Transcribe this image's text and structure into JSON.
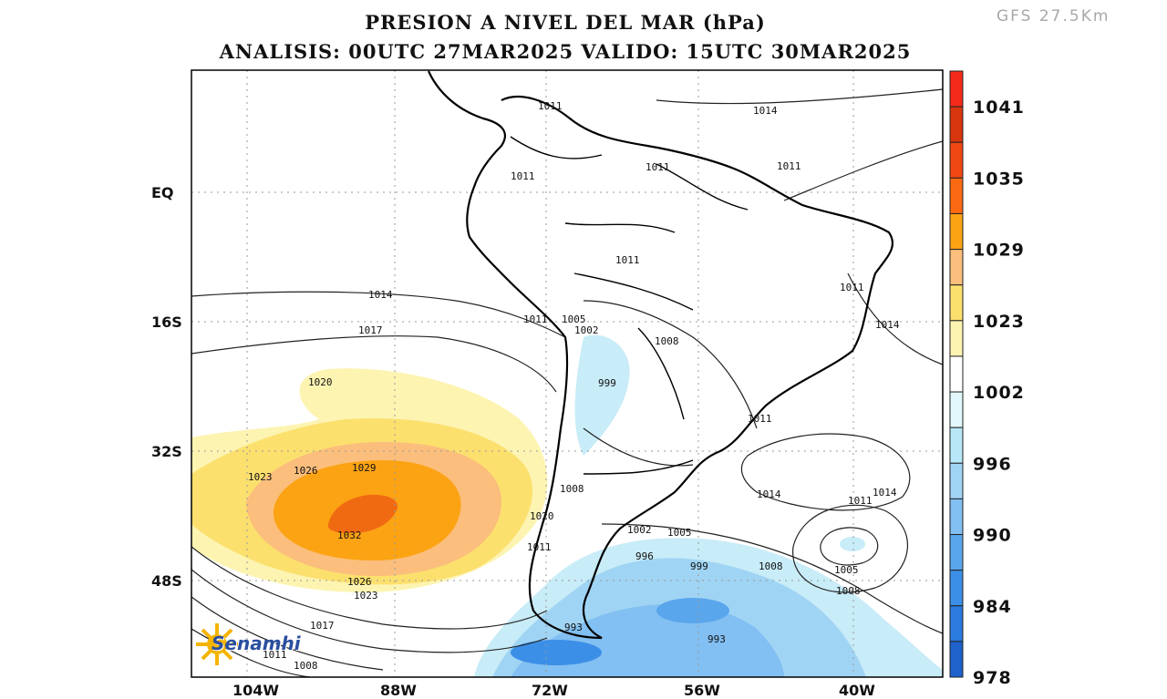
{
  "title": "PRESION A NIVEL DEL MAR (hPa)",
  "subtitle": "ANALISIS: 00UTC 27MAR2025 VALIDO: 15UTC 30MAR2025",
  "model_label": "GFS 27.5Km",
  "logo_text": "Senamhi",
  "axes": {
    "lon_labels": [
      "104W",
      "88W",
      "72W",
      "56W",
      "40W"
    ],
    "lat_labels": [
      "EQ",
      "16S",
      "32S",
      "48S"
    ]
  },
  "colorbar": {
    "labels": [
      "1041",
      "1035",
      "1029",
      "1023",
      "1002",
      "996",
      "990",
      "984",
      "978"
    ],
    "colors": [
      "#f42a1a",
      "#d8360e",
      "#f04812",
      "#fb6a12",
      "#fca314",
      "#fbbe7c",
      "#fce06e",
      "#fdf4b2",
      "#ffffff",
      "#e2f8fc",
      "#b8e8f7",
      "#a0d4f4",
      "#82bff2",
      "#5aa6ec",
      "#3c8fe6",
      "#2b7ae0",
      "#1f62cc"
    ]
  },
  "contour_labels": [
    {
      "text": "1014",
      "lon": "north-atlantic"
    },
    {
      "text": "1011"
    },
    {
      "text": "1011"
    },
    {
      "text": "1011"
    },
    {
      "text": "1011"
    },
    {
      "text": "1011"
    },
    {
      "text": "1014"
    },
    {
      "text": "1017"
    },
    {
      "text": "1011"
    },
    {
      "text": "1005"
    },
    {
      "text": "1002"
    },
    {
      "text": "1008"
    },
    {
      "text": "1011"
    },
    {
      "text": "1014"
    },
    {
      "text": "1020"
    },
    {
      "text": "999"
    },
    {
      "text": "1011"
    },
    {
      "text": "1023"
    },
    {
      "text": "1026"
    },
    {
      "text": "1029"
    },
    {
      "text": "1032"
    },
    {
      "text": "1008"
    },
    {
      "text": "1020"
    },
    {
      "text": "1014"
    },
    {
      "text": "1011"
    },
    {
      "text": "1014"
    },
    {
      "text": "1002"
    },
    {
      "text": "1005"
    },
    {
      "text": "1011"
    },
    {
      "text": "996"
    },
    {
      "text": "999"
    },
    {
      "text": "1008"
    },
    {
      "text": "1005"
    },
    {
      "text": "1008"
    },
    {
      "text": "1026"
    },
    {
      "text": "1023"
    },
    {
      "text": "1017"
    },
    {
      "text": "993"
    },
    {
      "text": "993"
    },
    {
      "text": "1011"
    },
    {
      "text": "1008"
    }
  ]
}
